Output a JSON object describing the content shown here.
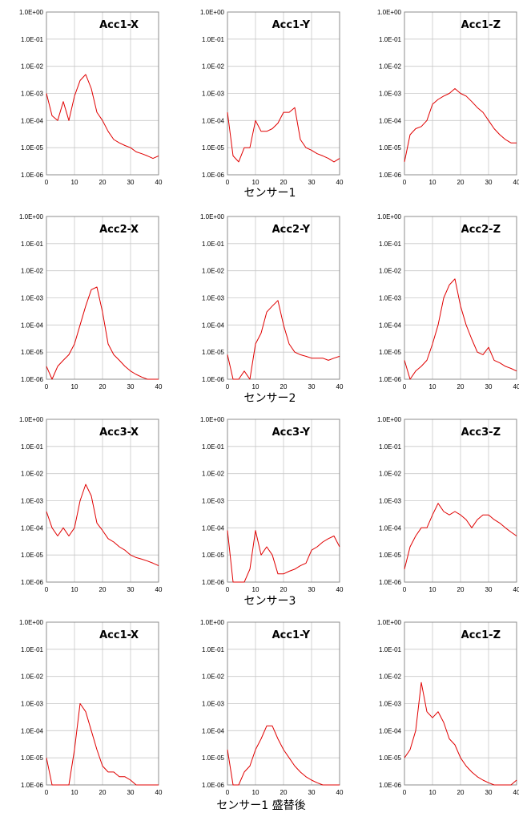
{
  "chart_data": {
    "type": "line",
    "yscale": "log",
    "ylim": [
      1e-06,
      1
    ],
    "y_ticks": [
      "1.0E+00",
      "1.0E-01",
      "1.0E-02",
      "1.0E-03",
      "1.0E-04",
      "1.0E-05",
      "1.0E-06"
    ],
    "xlim": [
      0,
      40
    ],
    "x_ticks": [
      "0",
      "10",
      "20",
      "30",
      "40"
    ],
    "grid": true,
    "line_color": "#e00000",
    "rows": [
      {
        "label": "センサー1",
        "panels": [
          {
            "title": "Acc1-X",
            "x": [
              0,
              2,
              4,
              6,
              8,
              10,
              12,
              14,
              16,
              18,
              20,
              22,
              24,
              26,
              28,
              30,
              32,
              34,
              36,
              38,
              40
            ],
            "y": [
              0.001,
              0.00015,
              0.0001,
              0.0005,
              0.0001,
              0.0008,
              0.003,
              0.005,
              0.0015,
              0.0002,
              0.0001,
              4e-05,
              2e-05,
              1.5e-05,
              1.2e-05,
              1e-05,
              7e-06,
              6e-06,
              5e-06,
              4e-06,
              5e-06
            ]
          },
          {
            "title": "Acc1-Y",
            "x": [
              0,
              2,
              4,
              6,
              8,
              10,
              12,
              14,
              16,
              18,
              20,
              22,
              24,
              26,
              28,
              30,
              32,
              34,
              36,
              38,
              40
            ],
            "y": [
              0.0002,
              5e-06,
              3e-06,
              1e-05,
              1e-05,
              0.0001,
              4e-05,
              4e-05,
              5e-05,
              8e-05,
              0.0002,
              0.0002,
              0.0003,
              2e-05,
              1e-05,
              8e-06,
              6e-06,
              5e-06,
              4e-06,
              3e-06,
              4e-06
            ]
          },
          {
            "title": "Acc1-Z",
            "x": [
              0,
              2,
              4,
              6,
              8,
              10,
              12,
              14,
              16,
              18,
              20,
              22,
              24,
              26,
              28,
              30,
              32,
              34,
              36,
              38,
              40
            ],
            "y": [
              3e-06,
              3e-05,
              5e-05,
              6e-05,
              0.0001,
              0.0004,
              0.0006,
              0.0008,
              0.001,
              0.0015,
              0.001,
              0.0008,
              0.0005,
              0.0003,
              0.0002,
              0.0001,
              5e-05,
              3e-05,
              2e-05,
              1.5e-05,
              1.5e-05
            ]
          }
        ]
      },
      {
        "label": "センサー2",
        "panels": [
          {
            "title": "Acc2-X",
            "x": [
              0,
              2,
              4,
              6,
              8,
              10,
              12,
              14,
              16,
              18,
              20,
              22,
              24,
              26,
              28,
              30,
              32,
              34,
              36,
              38,
              40
            ],
            "y": [
              3e-06,
              1e-06,
              3e-06,
              5e-06,
              8e-06,
              2e-05,
              0.0001,
              0.0005,
              0.002,
              0.0025,
              0.0003,
              2e-05,
              8e-06,
              5e-06,
              3e-06,
              2e-06,
              1.5e-06,
              1.2e-06,
              1e-06,
              1e-06,
              1e-06
            ]
          },
          {
            "title": "Acc2-Y",
            "x": [
              0,
              2,
              4,
              6,
              8,
              10,
              12,
              14,
              16,
              18,
              20,
              22,
              24,
              26,
              28,
              30,
              32,
              34,
              36,
              38,
              40
            ],
            "y": [
              8e-06,
              1e-06,
              1e-06,
              2e-06,
              1e-06,
              2e-05,
              5e-05,
              0.0003,
              0.0005,
              0.0008,
              0.0001,
              2e-05,
              1e-05,
              8e-06,
              7e-06,
              6e-06,
              6e-06,
              6e-06,
              5e-06,
              6e-06,
              7e-06
            ]
          },
          {
            "title": "Acc2-Z",
            "x": [
              0,
              2,
              4,
              6,
              8,
              10,
              12,
              14,
              16,
              18,
              20,
              22,
              24,
              26,
              28,
              30,
              32,
              34,
              36,
              38,
              40
            ],
            "y": [
              5e-06,
              1e-06,
              2e-06,
              3e-06,
              5e-06,
              2e-05,
              0.0001,
              0.001,
              0.003,
              0.005,
              0.0005,
              0.0001,
              3e-05,
              1e-05,
              8e-06,
              1.5e-05,
              5e-06,
              4e-06,
              3e-06,
              2.5e-06,
              2e-06
            ]
          }
        ]
      },
      {
        "label": "センサー3",
        "panels": [
          {
            "title": "Acc3-X",
            "x": [
              0,
              2,
              4,
              6,
              8,
              10,
              12,
              14,
              16,
              18,
              20,
              22,
              24,
              26,
              28,
              30,
              32,
              34,
              36,
              38,
              40
            ],
            "y": [
              0.0004,
              0.0001,
              5e-05,
              0.0001,
              5e-05,
              0.0001,
              0.001,
              0.004,
              0.0015,
              0.00015,
              8e-05,
              4e-05,
              3e-05,
              2e-05,
              1.5e-05,
              1e-05,
              8e-06,
              7e-06,
              6e-06,
              5e-06,
              4e-06
            ]
          },
          {
            "title": "Acc3-Y",
            "x": [
              0,
              2,
              4,
              6,
              8,
              10,
              12,
              14,
              16,
              18,
              20,
              22,
              24,
              26,
              28,
              30,
              32,
              34,
              36,
              38,
              40
            ],
            "y": [
              8e-05,
              1e-06,
              1e-06,
              1e-06,
              3e-06,
              8e-05,
              1e-05,
              2e-05,
              1e-05,
              2e-06,
              2e-06,
              2.5e-06,
              3e-06,
              4e-06,
              5e-06,
              1.5e-05,
              2e-05,
              3e-05,
              4e-05,
              5e-05,
              2e-05
            ]
          },
          {
            "title": "Acc3-Z",
            "x": [
              0,
              2,
              4,
              6,
              8,
              10,
              12,
              14,
              16,
              18,
              20,
              22,
              24,
              26,
              28,
              30,
              32,
              34,
              36,
              38,
              40
            ],
            "y": [
              3e-06,
              2e-05,
              5e-05,
              0.0001,
              0.0001,
              0.0003,
              0.0008,
              0.0004,
              0.0003,
              0.0004,
              0.0003,
              0.0002,
              0.0001,
              0.0002,
              0.0003,
              0.0003,
              0.0002,
              0.00015,
              0.0001,
              7e-05,
              5e-05
            ]
          }
        ]
      },
      {
        "label": "センサー1 盛替後",
        "panels": [
          {
            "title": "Acc1-X",
            "x": [
              0,
              2,
              4,
              6,
              8,
              10,
              12,
              14,
              16,
              18,
              20,
              22,
              24,
              26,
              28,
              30,
              32,
              34,
              36,
              38,
              40
            ],
            "y": [
              1e-05,
              1e-06,
              1e-06,
              1e-06,
              1e-06,
              2e-05,
              0.001,
              0.0005,
              0.0001,
              2e-05,
              5e-06,
              3e-06,
              3e-06,
              2e-06,
              2e-06,
              1.5e-06,
              1e-06,
              1e-06,
              1e-06,
              1e-06,
              1e-06
            ]
          },
          {
            "title": "Acc1-Y",
            "x": [
              0,
              2,
              4,
              6,
              8,
              10,
              12,
              14,
              16,
              18,
              20,
              22,
              24,
              26,
              28,
              30,
              32,
              34,
              36,
              38,
              40
            ],
            "y": [
              2e-05,
              1e-06,
              1e-06,
              3e-06,
              5e-06,
              2e-05,
              5e-05,
              0.00015,
              0.00015,
              5e-05,
              2e-05,
              1e-05,
              5e-06,
              3e-06,
              2e-06,
              1.5e-06,
              1.2e-06,
              1e-06,
              1e-06,
              1e-06,
              1e-06
            ]
          },
          {
            "title": "Acc1-Z",
            "x": [
              0,
              2,
              4,
              6,
              8,
              10,
              12,
              14,
              16,
              18,
              20,
              22,
              24,
              26,
              28,
              30,
              32,
              34,
              36,
              38,
              40
            ],
            "y": [
              1e-05,
              2e-05,
              0.0001,
              0.006,
              0.0005,
              0.0003,
              0.0005,
              0.0002,
              5e-05,
              3e-05,
              1e-05,
              5e-06,
              3e-06,
              2e-06,
              1.5e-06,
              1.2e-06,
              1e-06,
              1e-06,
              1e-06,
              1e-06,
              1.5e-06
            ]
          }
        ]
      }
    ]
  }
}
